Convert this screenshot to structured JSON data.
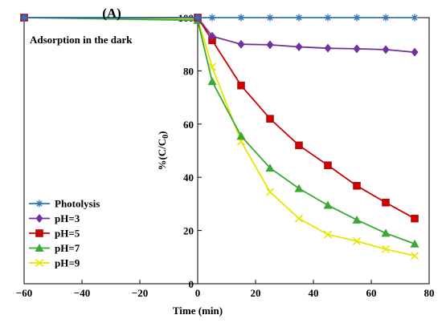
{
  "chart_data": {
    "type": "line",
    "panel_label": "(A)",
    "annotation": "Adsorption in the dark",
    "xlabel": "Time (min)",
    "ylabel": "%(C/C0)",
    "xlim": [
      -60,
      80
    ],
    "ylim": [
      0,
      100
    ],
    "x_ticks": [
      -60,
      -40,
      -20,
      0,
      20,
      40,
      60,
      80
    ],
    "y_ticks": [
      0,
      20,
      40,
      60,
      80,
      100
    ],
    "grid": false,
    "legend_position": "bottom-left",
    "series": [
      {
        "name": "Photolysis",
        "color": "#2e75b6",
        "marker": "asterisk",
        "x": [
          -60,
          0,
          5,
          15,
          25,
          35,
          45,
          55,
          65,
          75
        ],
        "y": [
          100,
          100,
          100,
          100,
          100,
          100,
          100,
          100,
          100,
          100
        ]
      },
      {
        "name": "pH=3",
        "color": "#7030a0",
        "marker": "diamond",
        "x": [
          -60,
          0,
          5,
          15,
          25,
          35,
          45,
          55,
          65,
          75
        ],
        "y": [
          100,
          100,
          93,
          90,
          89.8,
          89,
          88.5,
          88.3,
          88,
          87
        ]
      },
      {
        "name": "pH=5",
        "color": "#d00000",
        "marker": "square",
        "x": [
          -60,
          0,
          5,
          15,
          25,
          35,
          45,
          55,
          65,
          75
        ],
        "y": [
          100,
          100,
          91.5,
          74.5,
          62,
          52,
          44.5,
          36.8,
          30.5,
          24.5
        ]
      },
      {
        "name": "pH=7",
        "color": "#3aa835",
        "marker": "triangle",
        "x": [
          -60,
          0,
          5,
          15,
          25,
          35,
          45,
          55,
          65,
          75
        ],
        "y": [
          100,
          99,
          76,
          55.5,
          43.5,
          35.8,
          29.5,
          24,
          19,
          15
        ]
      },
      {
        "name": "pH=9",
        "color": "#e6e600",
        "marker": "x",
        "x": [
          -60,
          0,
          5,
          15,
          25,
          35,
          45,
          55,
          65,
          75
        ],
        "y": [
          100,
          99.5,
          81.5,
          53.5,
          34.5,
          24.5,
          18.5,
          16,
          13,
          10.5
        ]
      }
    ]
  }
}
